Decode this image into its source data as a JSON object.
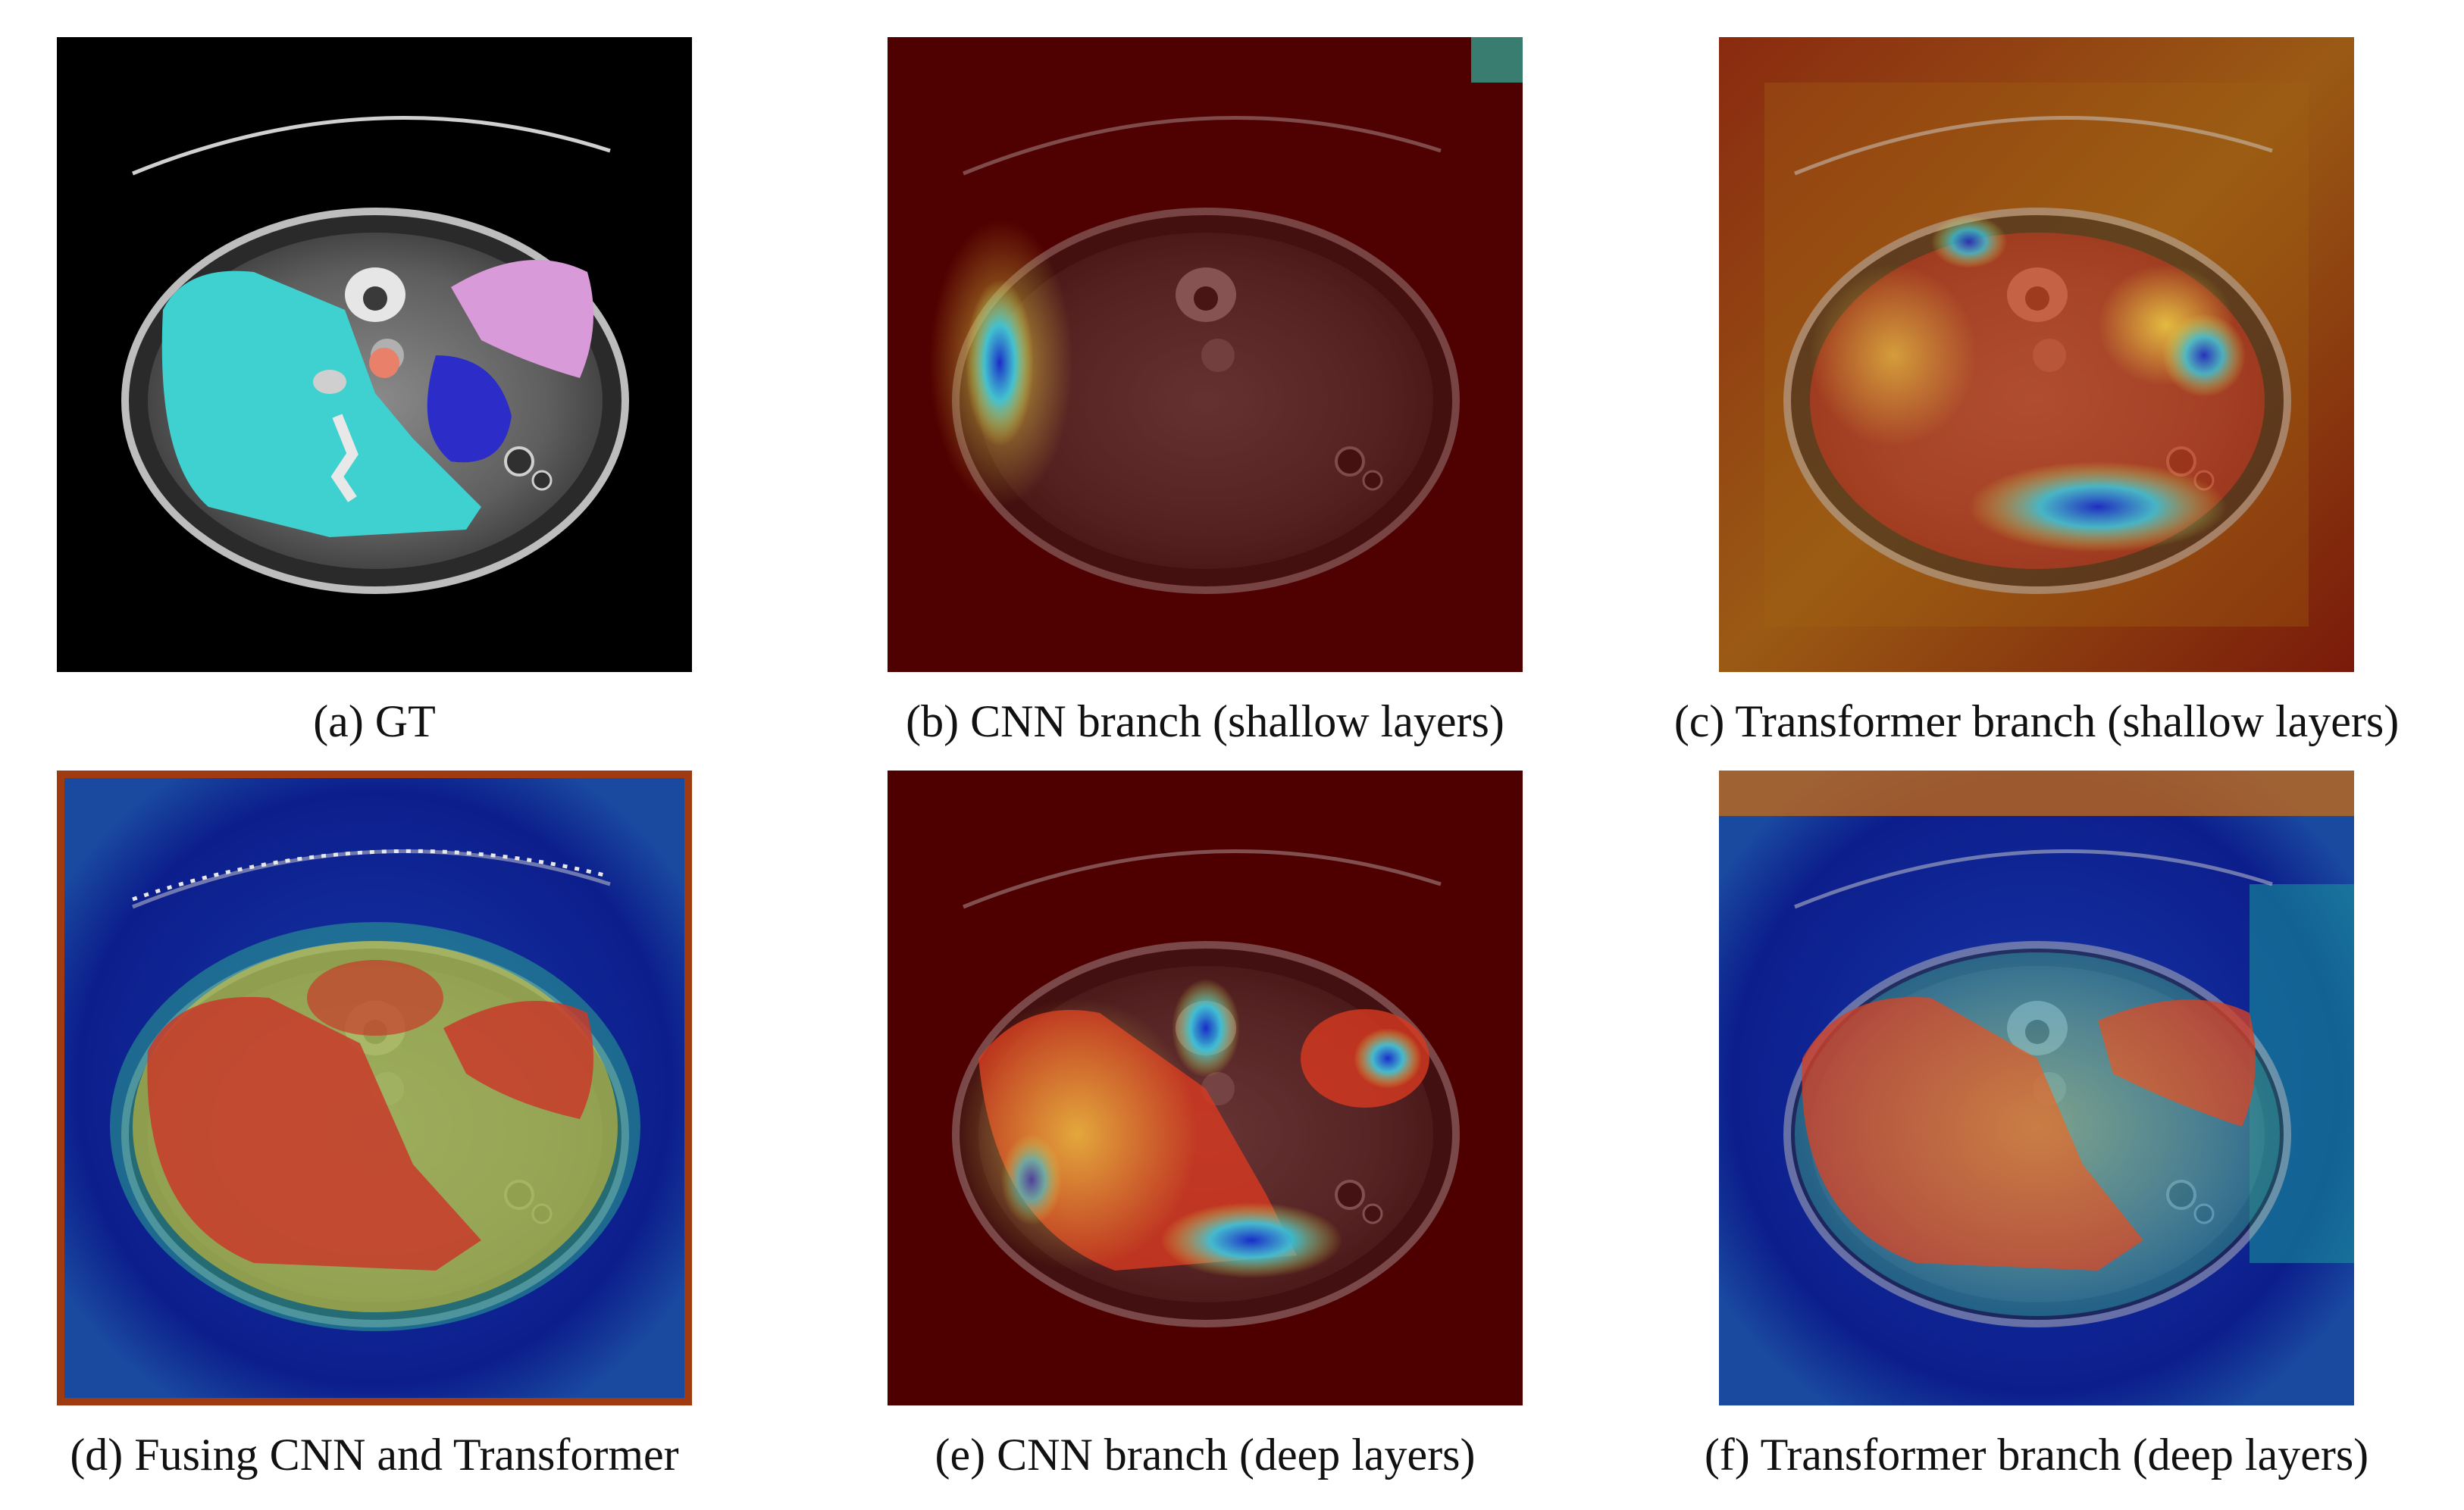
{
  "figure": {
    "panels": [
      {
        "caption": "(a) GT",
        "kind": "ground-truth segmentation"
      },
      {
        "caption": "(b) CNN branch (shallow layers)",
        "kind": "heatmap"
      },
      {
        "caption": "(c) Transformer branch (shallow layers)",
        "kind": "heatmap"
      },
      {
        "caption": "(d) Fusing CNN and Transformer",
        "kind": "heatmap"
      },
      {
        "caption": "(e) CNN branch (deep layers)",
        "kind": "heatmap"
      },
      {
        "caption": "(f) Transformer branch (deep layers)",
        "kind": "heatmap"
      }
    ],
    "colors": {
      "liver": "#3fd1cf",
      "spleen": "#d89ad8",
      "stomach": "#2c2cc8",
      "aorta": "#e8806a",
      "heat_dark": "#4a0000",
      "heat_red": "#c01818",
      "heat_yellow": "#f2d03a",
      "heat_cyan": "#38c8d8",
      "heat_blue": "#10208a"
    }
  }
}
